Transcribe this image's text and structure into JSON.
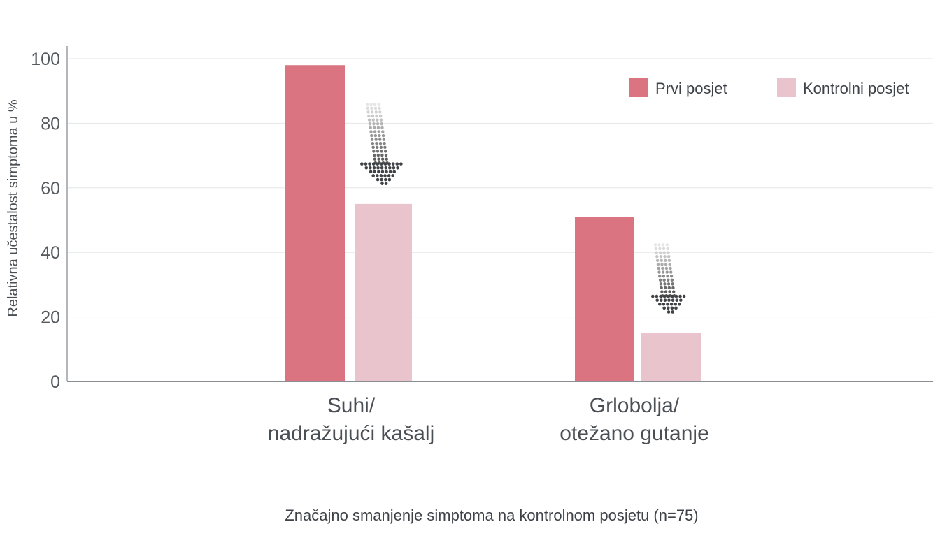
{
  "chart_data": {
    "type": "bar",
    "ylabel": "Relativna učestalost simptoma u %",
    "ylim": [
      0,
      100
    ],
    "yticks": [
      "0",
      "20",
      "40",
      "60",
      "80",
      "100"
    ],
    "categories": [
      [
        "Suhi/",
        "nadražujući kašalj"
      ],
      [
        "Grlobolja/",
        "otežano gutanje"
      ]
    ],
    "series": [
      {
        "name": "Prvi posjet",
        "color": "#d97480",
        "values": [
          98,
          51
        ]
      },
      {
        "name": "Kontrolni posjet",
        "color": "#e9c4cd",
        "values": [
          55,
          15
        ]
      }
    ],
    "legend_position": "top-right",
    "grid": true,
    "annotation_icon": "dotted-down-arrow-icon",
    "caption": "Značajno smanjenje simptoma na kontrolnom posjetu (n=75)"
  }
}
